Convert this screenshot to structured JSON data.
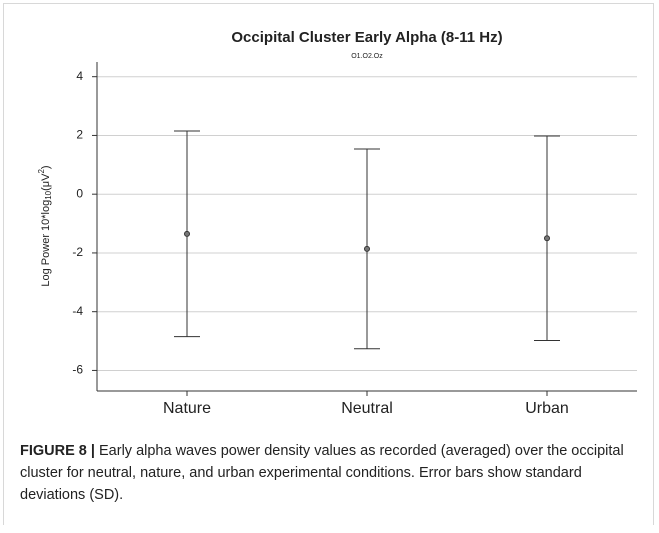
{
  "chart_data": {
    "type": "errorbar",
    "title": "Occipital Cluster Early Alpha (8-11 Hz)",
    "subtitle": "O1.O2.Oz",
    "ylabel_parts": [
      "Log Power 10*log",
      "10",
      "(μV",
      "2",
      ")"
    ],
    "categories": [
      "Nature",
      "Neutral",
      "Urban"
    ],
    "values": [
      -1.35,
      -1.86,
      -1.5
    ],
    "errors": [
      3.5,
      3.4,
      3.48
    ],
    "color": "#333333",
    "ylim": [
      -6.7,
      4.5
    ],
    "yticks": [
      -6,
      -4,
      -2,
      0,
      2,
      4
    ],
    "grid": true
  },
  "caption_label": "FIGURE 8 |",
  "caption": "Early alpha waves power density values as recorded (averaged) over the occipital cluster for neutral, nature, and urban experimental conditions. Error bars show standard deviations (SD)."
}
